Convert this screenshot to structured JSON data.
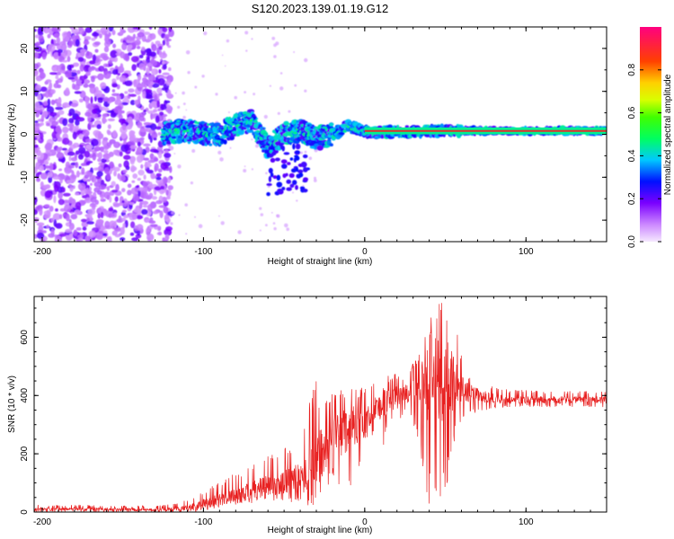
{
  "figure_title": "S120.2023.139.01.19.G12",
  "colors": {
    "snr_line": "#e82020",
    "axis": "#000000",
    "ridge_line": "#e03030"
  },
  "chart_data": [
    {
      "type": "heatmap",
      "title": "",
      "xlabel": "Height of straight line (km)",
      "ylabel": "Frequency (Hz)",
      "xlim": [
        -205,
        150
      ],
      "ylim": [
        -25,
        25
      ],
      "xticks": [
        -200,
        -100,
        0,
        100
      ],
      "yticks": [
        -20,
        -10,
        0,
        10,
        20
      ],
      "colorbar": {
        "label": "Normalized spectral amplitude",
        "range": [
          0,
          1
        ],
        "ticks": [
          0.0,
          0.2,
          0.4,
          0.6,
          0.8
        ],
        "colormap": "rainbow"
      },
      "features": [
        {
          "description_x_range": [
            -205,
            -120
          ],
          "frequency_range": [
            -25,
            25
          ],
          "amplitude_range": [
            0.1,
            0.4
          ]
        },
        {
          "description_x_range": [
            -120,
            150
          ],
          "frequency_range": [
            -3,
            3
          ],
          "amplitude_range": [
            0.3,
            1.0
          ]
        }
      ],
      "ridge": {
        "x": [
          -120,
          -110,
          -100,
          -90,
          -80,
          -70,
          -60,
          -50,
          -40,
          -30,
          -20,
          -10,
          0,
          20,
          40,
          60,
          80,
          100,
          150
        ],
        "y": [
          0.5,
          1,
          0,
          0,
          2,
          3,
          -3,
          0,
          1,
          -1,
          0,
          2,
          0.5,
          0.6,
          0.7,
          0.8,
          0.8,
          0.8,
          0.8
        ]
      }
    },
    {
      "type": "line",
      "title": "",
      "xlabel": "Height of straight line (km)",
      "ylabel": "SNR (10 * v/v)",
      "xlim": [
        -205,
        150
      ],
      "ylim": [
        0,
        740
      ],
      "xticks": [
        -200,
        -100,
        0,
        100
      ],
      "yticks": [
        0,
        200,
        400,
        600
      ],
      "series": [
        {
          "x": [
            -205,
            -190,
            -170,
            -150,
            -130,
            -115,
            -105,
            -95,
            -85,
            -75,
            -65,
            -55,
            -45,
            -40,
            -35,
            -30,
            -25,
            -20,
            -15,
            -10,
            -5,
            0,
            5,
            10,
            15,
            20,
            25,
            30,
            35,
            40,
            45,
            50,
            55,
            60,
            65,
            70,
            75,
            80,
            90,
            100,
            110,
            120,
            130,
            140,
            150
          ],
          "values": [
            10,
            10,
            10,
            8,
            8,
            10,
            20,
            35,
            50,
            65,
            80,
            95,
            110,
            125,
            145,
            175,
            215,
            250,
            270,
            285,
            300,
            320,
            340,
            365,
            380,
            395,
            405,
            410,
            420,
            440,
            460,
            470,
            450,
            425,
            410,
            400,
            395,
            390,
            385,
            385,
            385,
            385,
            385,
            385,
            385
          ],
          "envelope": [
            25,
            25,
            25,
            22,
            22,
            30,
            60,
            90,
            120,
            150,
            200,
            210,
            230,
            260,
            420,
            450,
            380,
            420,
            430,
            440,
            420,
            430,
            440,
            470,
            470,
            480,
            470,
            520,
            560,
            650,
            740,
            700,
            680,
            540,
            470,
            450,
            440,
            430,
            420,
            420,
            415,
            415,
            415,
            415,
            415
          ],
          "trough": [
            0,
            0,
            0,
            0,
            0,
            0,
            0,
            10,
            20,
            30,
            30,
            40,
            30,
            30,
            20,
            20,
            10,
            130,
            80,
            70,
            110,
            250,
            260,
            180,
            300,
            300,
            330,
            300,
            160,
            20,
            10,
            30,
            230,
            300,
            330,
            340,
            350,
            355,
            360,
            360,
            360,
            360,
            360,
            360,
            360
          ]
        }
      ]
    }
  ]
}
